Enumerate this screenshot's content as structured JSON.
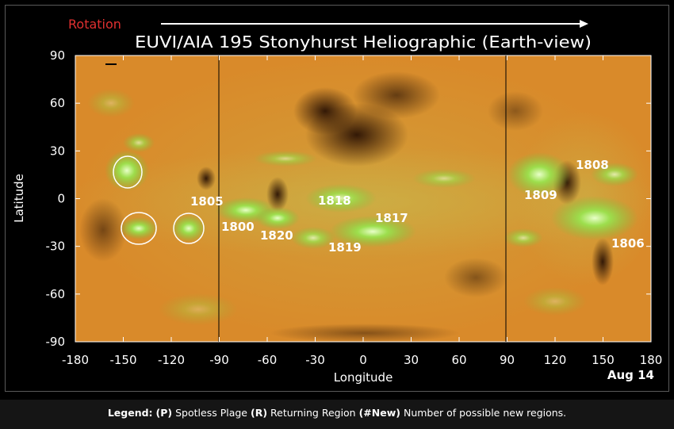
{
  "header": {
    "rotation_label": "Rotation",
    "title": "EUVI/AIA 195 Stonyhurst Heliographic (Earth-view)"
  },
  "axes": {
    "xlabel": "Longitude",
    "ylabel": "Latitude",
    "x_ticks": [
      "-180",
      "-150",
      "-120",
      "-90",
      "-60",
      "-30",
      "0",
      "30",
      "60",
      "90",
      "120",
      "150",
      "180"
    ],
    "y_ticks": [
      "90",
      "60",
      "30",
      "0",
      "-30",
      "-60",
      "-90"
    ]
  },
  "date_label": "Aug 14",
  "regions": [
    {
      "id": "region-1805",
      "label": "1805"
    },
    {
      "id": "region-1800",
      "label": "1800"
    },
    {
      "id": "region-1820",
      "label": "1820"
    },
    {
      "id": "region-1818",
      "label": "1818"
    },
    {
      "id": "region-1817",
      "label": "1817"
    },
    {
      "id": "region-1819",
      "label": "1819"
    },
    {
      "id": "region-1809",
      "label": "1809"
    },
    {
      "id": "region-1808",
      "label": "1808"
    },
    {
      "id": "region-1806",
      "label": "1806"
    }
  ],
  "legend": {
    "title": "Legend:",
    "p_code": "(P)",
    "p_text": "Spotless Plage",
    "r_code": "(R)",
    "r_text": "Returning Region",
    "new_code": "(#New)",
    "new_text": "Number of possible new regions."
  },
  "colors": {
    "background": "#000000",
    "map_base": "#d98a2a",
    "active_green": "#8ee04a",
    "rotation_red": "#e03030"
  }
}
